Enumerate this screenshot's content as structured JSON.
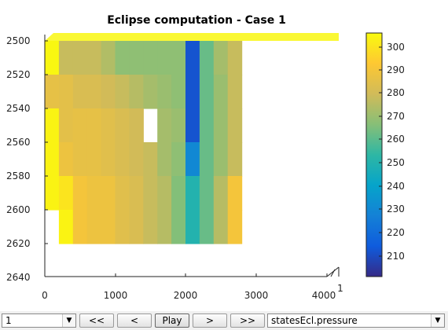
{
  "figure": {
    "title": "Eclipse computation - Case 1",
    "x_ticks": [
      "0",
      "1000",
      "2000",
      "3000",
      "4000"
    ],
    "y_ticks": [
      "2500",
      "2520",
      "2540",
      "2560",
      "2580",
      "2600",
      "2620",
      "2640"
    ],
    "colorbar_ticks": [
      "300",
      "290",
      "280",
      "270",
      "260",
      "250",
      "240",
      "230",
      "220",
      "210"
    ],
    "depth_tick": "1"
  },
  "chart_data": {
    "type": "heatmap",
    "title": "Eclipse computation - Case 1",
    "x_range": [
      0,
      4000
    ],
    "y_range": [
      2500,
      2640
    ],
    "y_reversed": true,
    "colormap": "parula",
    "color_range": [
      201,
      306
    ],
    "columns": 14,
    "rows": 6,
    "values": [
      [
        305,
        278,
        278,
        278,
        274,
        268,
        268,
        268,
        268,
        268,
        212,
        262,
        272,
        278
      ],
      [
        286,
        285,
        282,
        282,
        280,
        278,
        275,
        272,
        270,
        268,
        212,
        262,
        270,
        278
      ],
      [
        304,
        285,
        286,
        286,
        284,
        282,
        280,
        null,
        272,
        270,
        212,
        262,
        270,
        278
      ],
      [
        304,
        288,
        286,
        286,
        284,
        282,
        280,
        278,
        272,
        268,
        230,
        262,
        270,
        278
      ],
      [
        304,
        300,
        290,
        288,
        288,
        284,
        282,
        278,
        275,
        266,
        250,
        262,
        275,
        290
      ],
      [
        null,
        304,
        290,
        288,
        288,
        284,
        282,
        278,
        275,
        266,
        250,
        262,
        275,
        290
      ]
    ]
  },
  "colors": {
    "parula_low": "#352a87",
    "parula_mid": "#09a9c7",
    "parula_high": "#f9fb0e",
    "toolbar_bg": "#f0f0f0"
  },
  "toolbar": {
    "step_value": "1",
    "first_label": "<<",
    "prev_label": "<",
    "play_label": "Play",
    "next_label": ">",
    "last_label": ">>",
    "field_value": "statesEcl.pressure",
    "dropdown_icon": "chevron-down-icon"
  }
}
